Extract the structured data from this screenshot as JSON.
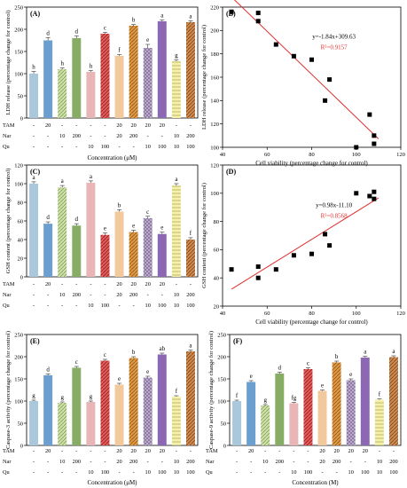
{
  "chart_data": [
    {
      "panel": "(A)",
      "type": "bar",
      "ylabel": "LDH release (percentage change for control)",
      "xlabel": "Concentration (μM)",
      "ylim": [
        0,
        250
      ],
      "yticks": [
        0,
        50,
        100,
        150,
        200,
        250
      ],
      "rows": [
        {
          "label": "TAM",
          "cells": [
            "-",
            "20",
            "-",
            "-",
            "-",
            "-",
            "20",
            "20",
            "20",
            "20",
            "-",
            "-"
          ]
        },
        {
          "label": "Nar",
          "cells": [
            "-",
            "-",
            "10",
            "200",
            "-",
            "-",
            "20",
            "200",
            "-",
            "-",
            "10",
            "200"
          ]
        },
        {
          "label": "Qu",
          "cells": [
            "-",
            "-",
            "-",
            "-",
            "10",
            "100",
            "-",
            "-",
            "10",
            "100",
            "10",
            "100"
          ]
        }
      ],
      "values": [
        100,
        175,
        110,
        180,
        104,
        190,
        140,
        208,
        158,
        218,
        128,
        216
      ],
      "errors": [
        5,
        6,
        3,
        5,
        3,
        3,
        3,
        3,
        8,
        3,
        3,
        3
      ],
      "letters": [
        "h",
        "d",
        "h",
        "d",
        "h",
        "c",
        "f",
        "b",
        "e",
        "a",
        "g",
        "a"
      ]
    },
    {
      "panel": "(B)",
      "type": "scatter",
      "xlabel": "Cell viability (percentage change for control)",
      "ylabel": "LDH release (percentage change for control)",
      "xlim": [
        40,
        120
      ],
      "ylim": [
        100,
        220
      ],
      "xticks": [
        40,
        60,
        80,
        100,
        120
      ],
      "yticks": [
        100,
        120,
        140,
        160,
        180,
        200,
        220
      ],
      "equation": "y=-1.84x+309.63",
      "r2": "R²=0.9157",
      "fit_slope": -1.84,
      "fit_intercept": 309.63,
      "fit_range": [
        44,
        110
      ],
      "x": [
        44,
        56,
        56,
        64,
        72,
        80,
        86,
        88,
        100,
        106,
        108,
        108
      ],
      "y": [
        216,
        215,
        208,
        188,
        178,
        175,
        140,
        158,
        100,
        128,
        103,
        110
      ]
    },
    {
      "panel": "(C)",
      "type": "bar",
      "ylabel": "GSH content (percentage change for control)",
      "xlabel": "",
      "ylim": [
        0,
        120
      ],
      "yticks": [
        0,
        20,
        40,
        60,
        80,
        100,
        120
      ],
      "rows": [
        {
          "label": "TAM",
          "cells": [
            "-",
            "20",
            "-",
            "-",
            "-",
            "-",
            "20",
            "20",
            "20",
            "20",
            "-",
            "-"
          ]
        },
        {
          "label": "Nar",
          "cells": [
            "-",
            "-",
            "10",
            "200",
            "-",
            "-",
            "20",
            "200",
            "-",
            "-",
            "10",
            "200"
          ]
        },
        {
          "label": "Qu",
          "cells": [
            "-",
            "-",
            "-",
            "-",
            "10",
            "100",
            "-",
            "-",
            "10",
            "100",
            "10",
            "100"
          ]
        }
      ],
      "values": [
        100,
        57,
        96,
        55,
        101,
        45,
        70,
        48,
        63,
        46,
        98,
        40
      ],
      "errors": [
        2,
        2,
        2,
        2,
        2,
        2,
        2,
        2,
        2,
        2,
        2,
        2
      ],
      "letters": [
        "a",
        "d",
        "a",
        "d",
        "a",
        "e",
        "b",
        "e",
        "c",
        "e",
        "a",
        "f"
      ]
    },
    {
      "panel": "(D)",
      "type": "scatter",
      "xlabel": "Cell viability (percentage change for control)",
      "ylabel": "GSH content (percentage change for control)",
      "xlim": [
        40,
        120
      ],
      "ylim": [
        20,
        120
      ],
      "xticks": [
        40,
        60,
        80,
        100,
        120
      ],
      "yticks": [
        20,
        40,
        60,
        80,
        100,
        120
      ],
      "equation": "y=0.98x-11.10",
      "r2": "R²=0.8568",
      "fit_slope": 0.98,
      "fit_intercept": -11.1,
      "fit_range": [
        44,
        110
      ],
      "x": [
        44,
        56,
        56,
        64,
        72,
        80,
        86,
        88,
        100,
        106,
        108,
        108
      ],
      "y": [
        46,
        40,
        48,
        46,
        56,
        57,
        71,
        63,
        100,
        98,
        101,
        96
      ]
    },
    {
      "panel": "(E)",
      "type": "bar",
      "ylabel": "Caspase-3 activity (percentage change for control)",
      "xlabel": "Concentration (μM)",
      "ylim": [
        0,
        250
      ],
      "yticks": [
        0,
        50,
        100,
        150,
        200,
        250
      ],
      "rows": [
        {
          "label": "TAM",
          "cells": [
            "-",
            "20",
            "-",
            "-",
            "-",
            "-",
            "20",
            "20",
            "20",
            "20",
            "-",
            "-"
          ]
        },
        {
          "label": "Nar",
          "cells": [
            "-",
            "-",
            "10",
            "200",
            "-",
            "-",
            "20",
            "200",
            "-",
            "-",
            "10",
            "200"
          ]
        },
        {
          "label": "Qu",
          "cells": [
            "-",
            "-",
            "-",
            "-",
            "10",
            "100",
            "-",
            "-",
            "10",
            "100",
            "10",
            "100"
          ]
        }
      ],
      "values": [
        100,
        158,
        96,
        175,
        98,
        191,
        137,
        197,
        153,
        205,
        110,
        212
      ],
      "errors": [
        2,
        3,
        2,
        3,
        2,
        3,
        3,
        3,
        3,
        3,
        2,
        3
      ],
      "letters": [
        "g",
        "d",
        "g",
        "c",
        "g",
        "c",
        "e",
        "b",
        "e",
        "ab",
        "f",
        "a"
      ]
    },
    {
      "panel": "(F)",
      "type": "bar",
      "ylabel": "Caspase-9 activity (percentage change for control)",
      "xlabel": "Concentration (M)",
      "ylim": [
        0,
        250
      ],
      "yticks": [
        0,
        50,
        100,
        150,
        200,
        250
      ],
      "rows": [
        {
          "label": "TAM",
          "cells": [
            "-",
            "20",
            "-",
            "-",
            "-",
            "-",
            "20",
            "20",
            "20",
            "20",
            "-",
            "-"
          ]
        },
        {
          "label": "Nar",
          "cells": [
            "-",
            "-",
            "10",
            "200",
            "-",
            "-",
            "20",
            "200",
            "-",
            "-",
            "10",
            "200"
          ]
        },
        {
          "label": "Qu",
          "cells": [
            "-",
            "-",
            "-",
            "-",
            "10",
            "100",
            "-",
            "-",
            "10",
            "100",
            "10",
            "100"
          ]
        }
      ],
      "values": [
        100,
        143,
        90,
        162,
        95,
        172,
        123,
        187,
        147,
        198,
        103,
        199
      ],
      "errors": [
        2,
        3,
        2,
        3,
        2,
        3,
        2,
        3,
        3,
        3,
        2,
        3
      ],
      "letters": [
        "f",
        "e",
        "g",
        "d",
        "fg",
        "c",
        "e",
        "b",
        "e",
        "a",
        "f",
        "a"
      ]
    }
  ],
  "style": {
    "bar_colors": [
      "#a9c8dc",
      "#6a9fd0",
      "#cde2a6",
      "#86ad63",
      "#e8b6b6",
      "#df5d5d",
      "#f1c99c",
      "#dd9a4a",
      "#c9b7db",
      "#8c68b4",
      "#f5f1a8",
      "#cc8a55"
    ],
    "bar_hatch": [
      "none",
      "none",
      "diag",
      "none",
      "none",
      "diag",
      "none",
      "diag",
      "check",
      "none",
      "horiz",
      "diag"
    ],
    "fit_line_color": "#e03030",
    "r2_color": "#e03030",
    "marker_color": "#000000"
  }
}
